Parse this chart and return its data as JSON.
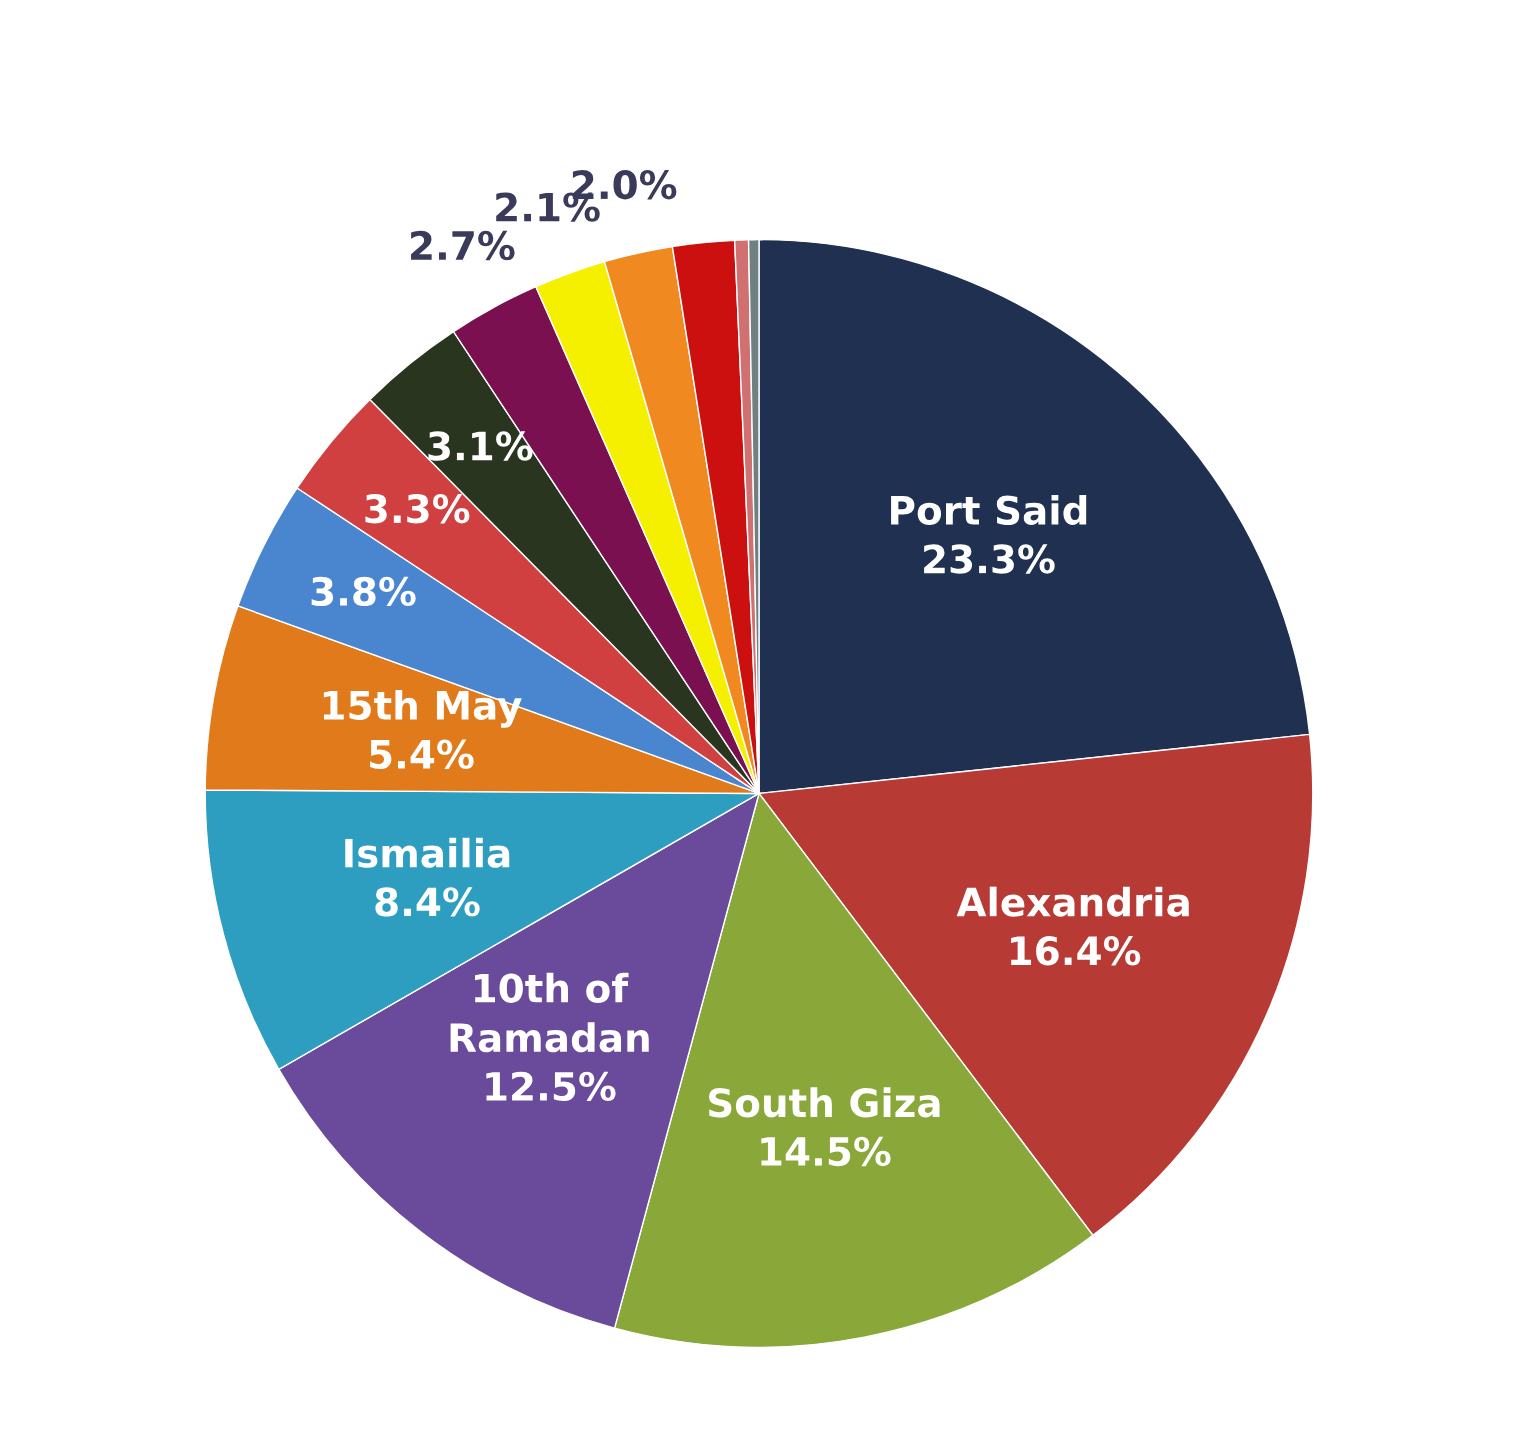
{
  "chart_data": {
    "type": "pie",
    "categories": [
      "Port Said",
      "Alexandria",
      "South Giza",
      "10th of Ramadan",
      "Ismailia",
      "15th May",
      null,
      null,
      null,
      null,
      null,
      null,
      null,
      null,
      null
    ],
    "values": [
      23.3,
      16.4,
      14.5,
      12.5,
      8.4,
      5.4,
      3.8,
      3.3,
      3.1,
      2.7,
      2.1,
      2.0,
      1.8,
      0.4,
      0.3
    ],
    "value_labels": [
      "23.3%",
      "16.4%",
      "14.5%",
      "12.5%",
      "8.4%",
      "5.4%",
      "3.8%",
      "3.3%",
      "3.1%",
      "2.7%",
      "2.1%",
      "2.0%",
      null,
      null,
      null
    ],
    "colors": [
      "#1f3050",
      "#b83a35",
      "#8aa83a",
      "#6a4a9a",
      "#2e9ec0",
      "#e07a1a",
      "#4a86d0",
      "#d04040",
      "#2a3520",
      "#7a1050",
      "#f5f000",
      "#f08a20",
      "#cc1010",
      "#d07070",
      "#708080"
    ],
    "legend": false
  }
}
